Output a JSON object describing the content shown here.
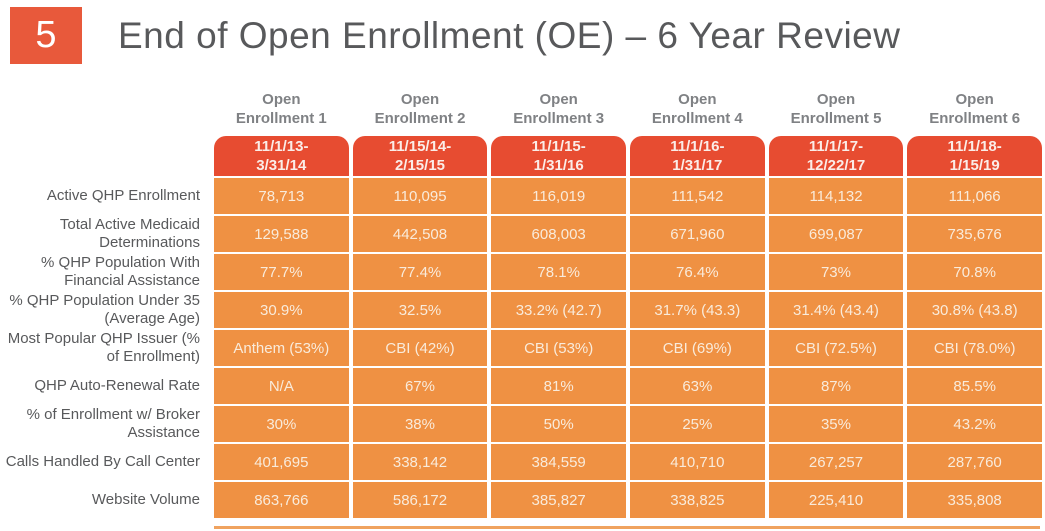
{
  "slide": {
    "page_number": "5",
    "title": "End of Open Enrollment (OE) – 6 Year Review"
  },
  "colors": {
    "badge_orange": "#E8593B",
    "date_cell_red": "#E74C31",
    "data_cell_orange": "#EF9143",
    "title_gray": "#58595B",
    "header_gray": "#7F8184"
  },
  "chart_data": {
    "type": "table",
    "title": "End of Open Enrollment (OE) – 6 Year Review",
    "columns": [
      {
        "label": "Open Enrollment 1",
        "period": "11/1/13-\n3/31/14"
      },
      {
        "label": "Open Enrollment 2",
        "period": "11/15/14-\n2/15/15"
      },
      {
        "label": "Open Enrollment 3",
        "period": "11/1/15-\n1/31/16"
      },
      {
        "label": "Open Enrollment 4",
        "period": "11/1/16-\n1/31/17"
      },
      {
        "label": "Open Enrollment 5",
        "period": "11/1/17-\n12/22/17"
      },
      {
        "label": "Open Enrollment 6",
        "period": "11/1/18-\n1/15/19"
      }
    ],
    "rows": [
      {
        "label": "Active QHP Enrollment",
        "values": [
          "78,713",
          "110,095",
          "116,019",
          "111,542",
          "114,132",
          "111,066"
        ]
      },
      {
        "label": "Total Active Medicaid Determinations",
        "values": [
          "129,588",
          "442,508",
          "608,003",
          "671,960",
          "699,087",
          "735,676"
        ]
      },
      {
        "label": "% QHP Population With Financial Assistance",
        "values": [
          "77.7%",
          "77.4%",
          "78.1%",
          "76.4%",
          "73%",
          "70.8%"
        ]
      },
      {
        "label": "% QHP Population Under 35 (Average Age)",
        "values": [
          "30.9%",
          "32.5%",
          "33.2% (42.7)",
          "31.7% (43.3)",
          "31.4% (43.4)",
          "30.8% (43.8)"
        ]
      },
      {
        "label": "Most Popular QHP Issuer (% of Enrollment)",
        "values": [
          "Anthem (53%)",
          "CBI (42%)",
          "CBI (53%)",
          "CBI (69%)",
          "CBI (72.5%)",
          "CBI (78.0%)"
        ]
      },
      {
        "label": "QHP Auto-Renewal Rate",
        "values": [
          "N/A",
          "67%",
          "81%",
          "63%",
          "87%",
          "85.5%"
        ]
      },
      {
        "label": "% of Enrollment w/ Broker Assistance",
        "values": [
          "30%",
          "38%",
          "50%",
          "25%",
          "35%",
          "43.2%"
        ]
      },
      {
        "label": "Calls Handled By Call Center",
        "values": [
          "401,695",
          "338,142",
          "384,559",
          "410,710",
          "267,257",
          "287,760"
        ]
      },
      {
        "label": "Website Volume",
        "values": [
          "863,766",
          "586,172",
          "385,827",
          "338,825",
          "225,410",
          "335,808"
        ]
      }
    ]
  }
}
